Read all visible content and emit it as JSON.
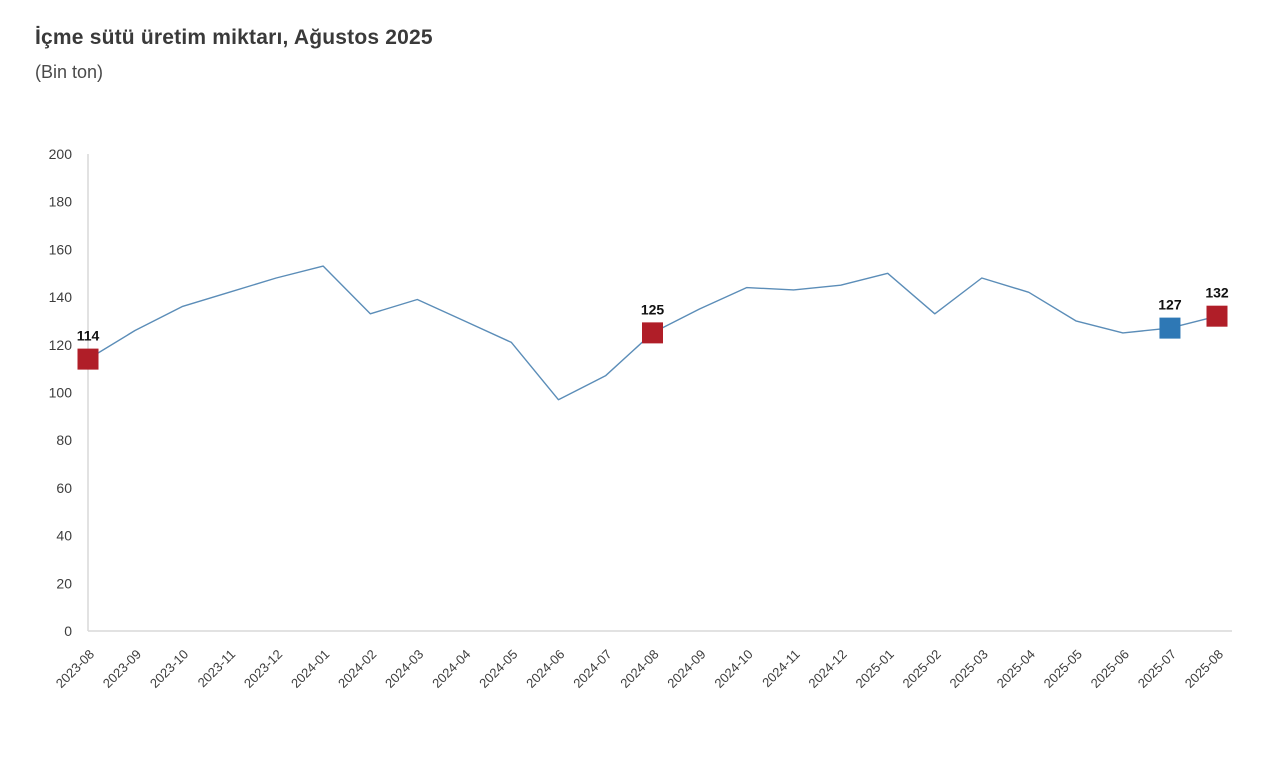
{
  "header": {
    "title": "İçme sütü üretim miktarı, Ağustos 2025",
    "subtitle": "(Bin ton)"
  },
  "chart_data": {
    "type": "line",
    "title": "İçme sütü üretim miktarı, Ağustos 2025",
    "ylabel": "(Bin ton)",
    "xlabel": "",
    "categories": [
      "2023-08",
      "2023-09",
      "2023-10",
      "2023-11",
      "2023-12",
      "2024-01",
      "2024-02",
      "2024-03",
      "2024-04",
      "2024-05",
      "2024-06",
      "2024-07",
      "2024-08",
      "2024-09",
      "2024-10",
      "2024-11",
      "2024-12",
      "2025-01",
      "2025-02",
      "2025-03",
      "2025-04",
      "2025-05",
      "2025-06",
      "2025-07",
      "2025-08"
    ],
    "values": [
      114,
      126,
      136,
      142,
      148,
      153,
      133,
      139,
      130,
      121,
      97,
      107,
      125,
      135,
      144,
      143,
      145,
      150,
      133,
      148,
      142,
      130,
      125,
      127,
      132
    ],
    "ylim": [
      0,
      200
    ],
    "ytick_step": 20,
    "yticks": [
      0,
      20,
      40,
      60,
      80,
      100,
      120,
      140,
      160,
      180,
      200
    ],
    "grid": false,
    "legend_position": "none",
    "x_label_rotation_deg": 45,
    "labeled_points": [
      {
        "category": "2023-08",
        "value": 114,
        "label": "114",
        "marker": "square",
        "marker_color": "#b01e28"
      },
      {
        "category": "2024-08",
        "value": 125,
        "label": "125",
        "marker": "square",
        "marker_color": "#b01e28"
      },
      {
        "category": "2025-07",
        "value": 127,
        "label": "127",
        "marker": "square",
        "marker_color": "#2e78b5"
      },
      {
        "category": "2025-08",
        "value": 132,
        "label": "132",
        "marker": "square",
        "marker_color": "#b01e28"
      }
    ],
    "colors": {
      "line": "#5b8db8",
      "axis": "#d9d9d9",
      "tick_labels": "#3d3d3d",
      "value_labels": "#111111",
      "background": "#ffffff",
      "marker_red": "#b01e28",
      "marker_blue": "#2e78b5"
    }
  }
}
